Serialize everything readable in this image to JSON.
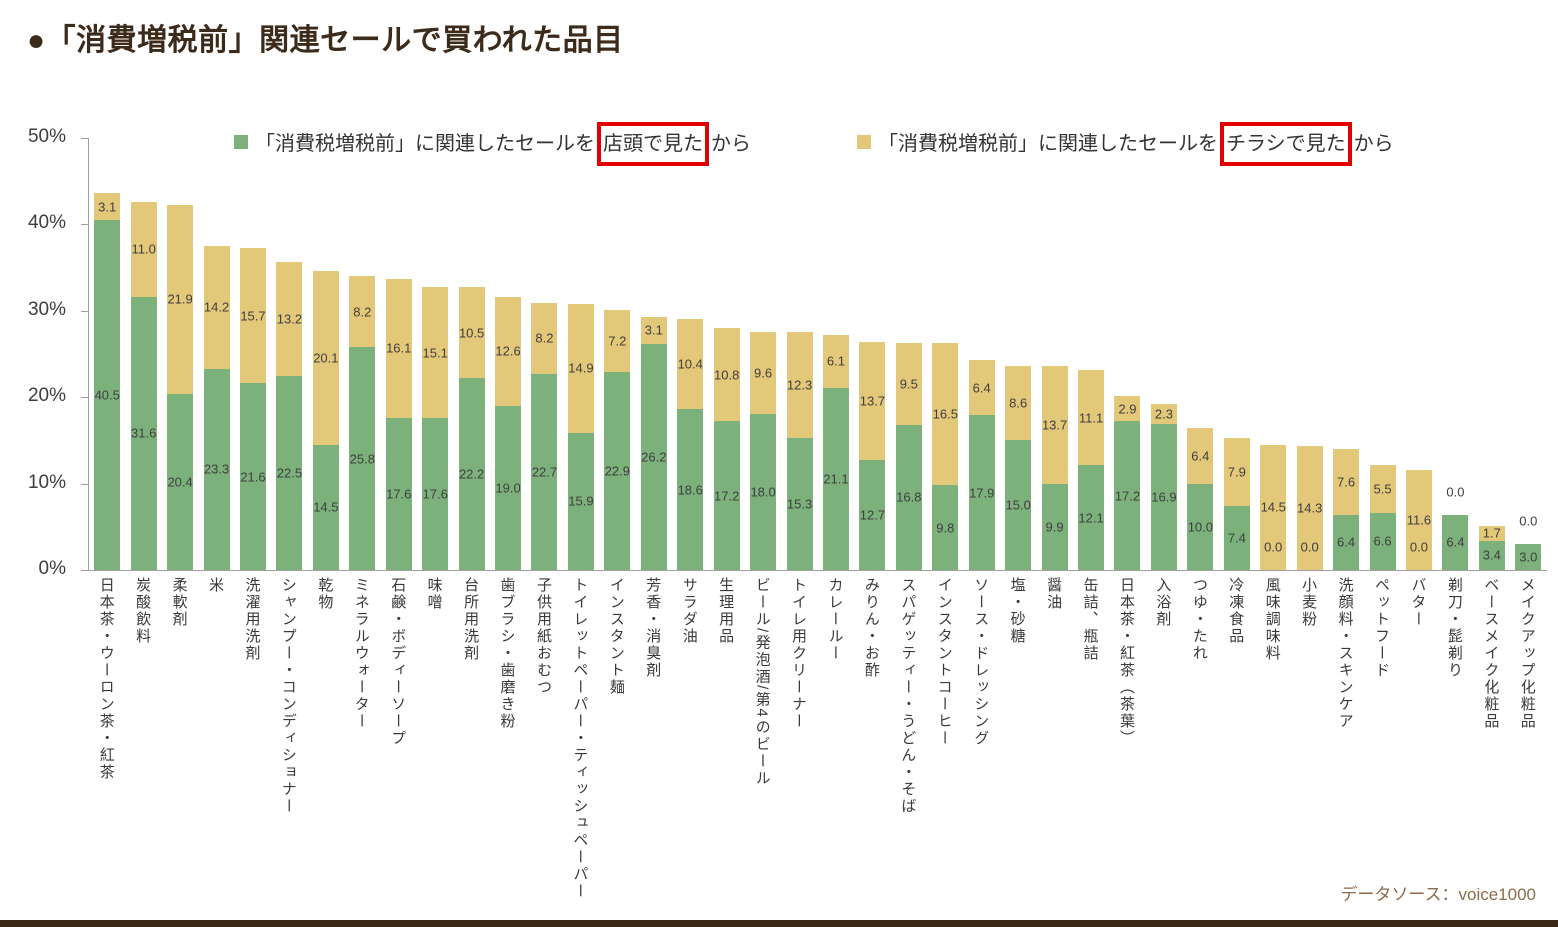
{
  "title": "●「消費増税前」関連セールで買われた品目",
  "source": "データソース：voice1000",
  "legend": {
    "items": [
      {
        "pre": "「消費税増税前」に関連したセールを",
        "boxed": "店頭で見た",
        "post": "から"
      },
      {
        "pre": "「消費税増税前」に関連したセールを",
        "boxed": "チラシで見た",
        "post": "から"
      }
    ]
  },
  "colors": {
    "store_green": "#7cb17c",
    "flyer_yellow": "#e4c87a",
    "highlight_red": "#e20000",
    "title_text": "#3c2b1b",
    "source_text": "#8b6c49",
    "bottom_bar": "#3a2817"
  },
  "chart_data": {
    "type": "bar",
    "stacked": true,
    "title": "●「消費増税前」関連セールで買われた品目",
    "ylim": [
      0,
      50
    ],
    "yticks": [
      "50%",
      "40%",
      "30%",
      "20%",
      "10%",
      "0%"
    ],
    "grid": false,
    "legend_position": "top",
    "value_labels": "one-decimal-inside-center",
    "categories": [
      "日本茶・ウーロン茶・紅茶",
      "炭酸飲料",
      "柔軟剤",
      "米",
      "洗濯用洗剤",
      "シャンプー・コンディショナー",
      "乾物",
      "ミネラルウォーター",
      "石鹸・ボディーソープ",
      "味噌",
      "台所用洗剤",
      "歯ブラシ・歯磨き粉",
      "子供用紙おむつ",
      "トイレットペーパー・ティッシュペーパー",
      "インスタント麺",
      "芳香・消臭剤",
      "サラダ油",
      "生理用品",
      "ビール/発泡酒/第4のビール",
      "トイレ用クリーナー",
      "カレールー",
      "みりん・お酢",
      "スパゲッティー・うどん・そば",
      "インスタントコーヒー",
      "ソース・ドレッシング",
      "塩・砂糖",
      "醤油",
      "缶詰、瓶詰",
      "日本茶・紅茶（茶葉）",
      "入浴剤",
      "つゆ・たれ",
      "冷凍食品",
      "風味調味料",
      "小麦粉",
      "洗顔料・スキンケア",
      "ペットフード",
      "バター",
      "剃刀・髭剃り",
      "ベースメイク化粧品",
      "メイクアップ化粧品"
    ],
    "series": [
      {
        "name": "「消費税増税前」に関連したセールを店頭で見たから",
        "color": "#7cb17c",
        "values": [
          40.5,
          31.6,
          20.4,
          23.3,
          21.6,
          22.5,
          14.5,
          25.8,
          17.6,
          17.6,
          22.2,
          19.0,
          22.7,
          15.9,
          22.9,
          26.2,
          18.6,
          17.2,
          18.0,
          15.3,
          21.1,
          12.7,
          16.8,
          9.8,
          17.9,
          15.0,
          9.9,
          12.1,
          17.2,
          16.9,
          10.0,
          7.4,
          0.0,
          0.0,
          6.4,
          6.6,
          0.0,
          6.4,
          3.4,
          3.0
        ]
      },
      {
        "name": "「消費税増税前」に関連したセールをチラシで見たから",
        "color": "#e4c87a",
        "values": [
          3.1,
          11.0,
          21.9,
          14.2,
          15.7,
          13.2,
          20.1,
          8.2,
          16.1,
          15.1,
          10.5,
          12.6,
          8.2,
          14.9,
          7.2,
          3.1,
          10.4,
          10.8,
          9.6,
          12.3,
          6.1,
          13.7,
          9.5,
          16.5,
          6.4,
          8.6,
          13.7,
          11.1,
          2.9,
          2.3,
          6.4,
          7.9,
          14.5,
          14.3,
          7.6,
          5.5,
          11.6,
          0.0,
          1.7,
          0.0
        ]
      }
    ]
  }
}
